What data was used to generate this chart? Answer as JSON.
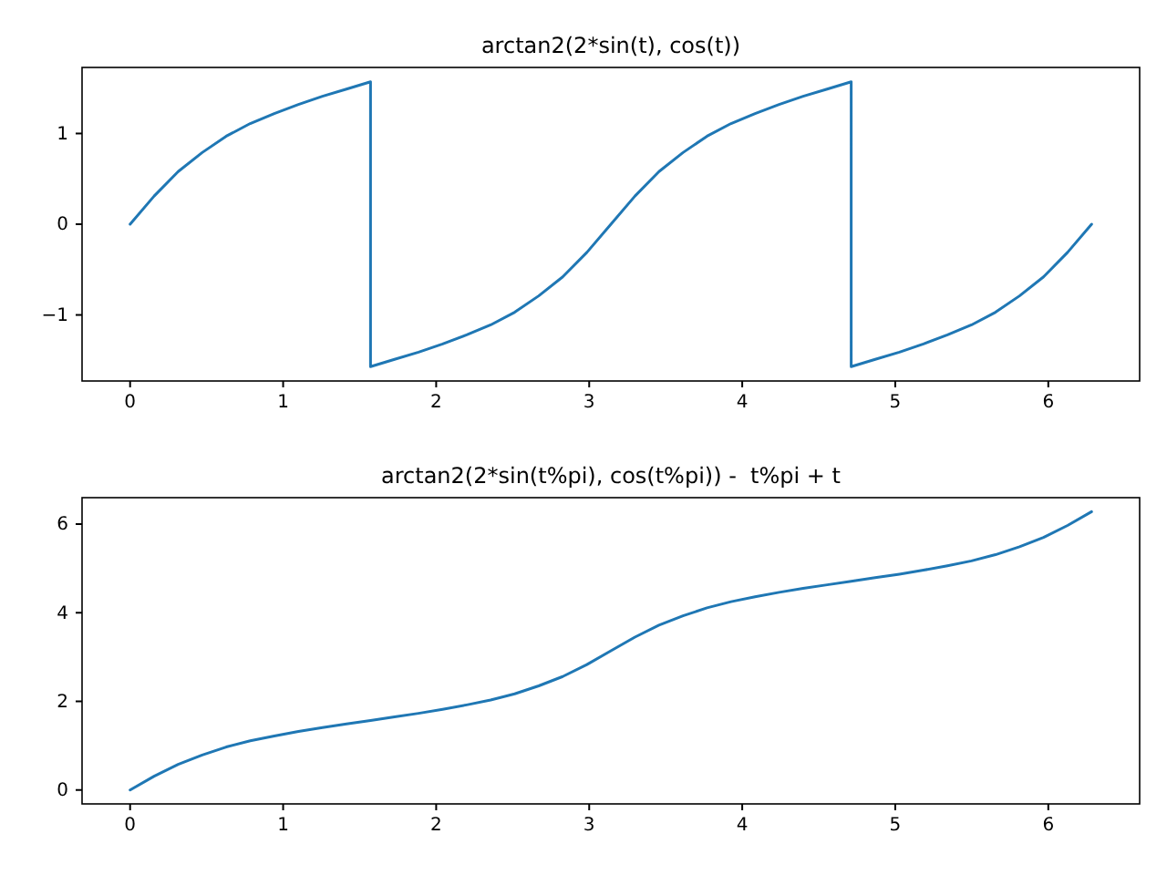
{
  "chart_data": [
    {
      "type": "line",
      "title": "arctan2(2*sin(t), cos(t))",
      "grid": false,
      "xlim": [
        -0.314,
        6.597
      ],
      "xticks": [
        0,
        1,
        2,
        3,
        4,
        5,
        6
      ],
      "ylim": [
        -1.728,
        1.728
      ],
      "yticks": [
        {
          "value": -1,
          "label": "−1"
        },
        0,
        1
      ],
      "series": [
        {
          "color": "#1f77b4",
          "x": [
            0,
            0.157,
            0.314,
            0.471,
            0.628,
            0.785,
            0.942,
            1.1,
            1.257,
            1.414,
            1.571,
            1.571,
            1.728,
            1.885,
            2.042,
            2.199,
            2.356,
            2.513,
            2.67,
            2.827,
            2.985,
            3.142,
            3.299,
            3.456,
            3.613,
            3.77,
            3.927,
            4.084,
            4.241,
            4.398,
            4.555,
            4.712,
            4.712,
            4.869,
            5.027,
            5.184,
            5.341,
            5.498,
            5.655,
            5.812,
            5.969,
            6.126,
            6.283
          ],
          "values": [
            0,
            0.31,
            0.58,
            0.79,
            0.97,
            1.11,
            1.22,
            1.32,
            1.41,
            1.49,
            1.57,
            -1.57,
            -1.49,
            -1.41,
            -1.32,
            -1.22,
            -1.11,
            -0.97,
            -0.79,
            -0.58,
            -0.31,
            0,
            0.31,
            0.58,
            0.79,
            0.97,
            1.11,
            1.22,
            1.32,
            1.41,
            1.49,
            1.57,
            -1.57,
            -1.49,
            -1.41,
            -1.32,
            -1.22,
            -1.11,
            -0.97,
            -0.79,
            -0.58,
            -0.31,
            0
          ]
        }
      ]
    },
    {
      "type": "line",
      "title": "arctan2(2*sin(t%pi), cos(t%pi)) -  t%pi + t",
      "grid": false,
      "xlim": [
        -0.314,
        6.597
      ],
      "xticks": [
        0,
        1,
        2,
        3,
        4,
        5,
        6
      ],
      "ylim": [
        -0.314,
        6.597
      ],
      "yticks": [
        0,
        2,
        4,
        6
      ],
      "series": [
        {
          "color": "#1f77b4",
          "x": [
            0,
            0.157,
            0.314,
            0.471,
            0.628,
            0.785,
            0.942,
            1.1,
            1.257,
            1.414,
            1.571,
            1.728,
            1.885,
            2.042,
            2.199,
            2.356,
            2.513,
            2.67,
            2.827,
            2.985,
            3.142,
            3.299,
            3.456,
            3.613,
            3.77,
            3.927,
            4.084,
            4.241,
            4.398,
            4.555,
            4.712,
            4.869,
            5.027,
            5.184,
            5.341,
            5.498,
            5.655,
            5.812,
            5.969,
            6.126,
            6.283
          ],
          "values": [
            0,
            0.31,
            0.58,
            0.79,
            0.97,
            1.11,
            1.22,
            1.32,
            1.41,
            1.49,
            1.57,
            1.65,
            1.73,
            1.82,
            1.92,
            2.03,
            2.17,
            2.35,
            2.56,
            2.83,
            3.14,
            3.45,
            3.72,
            3.93,
            4.11,
            4.25,
            4.36,
            4.46,
            4.55,
            4.63,
            4.71,
            4.79,
            4.87,
            4.96,
            5.06,
            5.17,
            5.31,
            5.49,
            5.7,
            5.97,
            6.28
          ]
        }
      ]
    }
  ]
}
